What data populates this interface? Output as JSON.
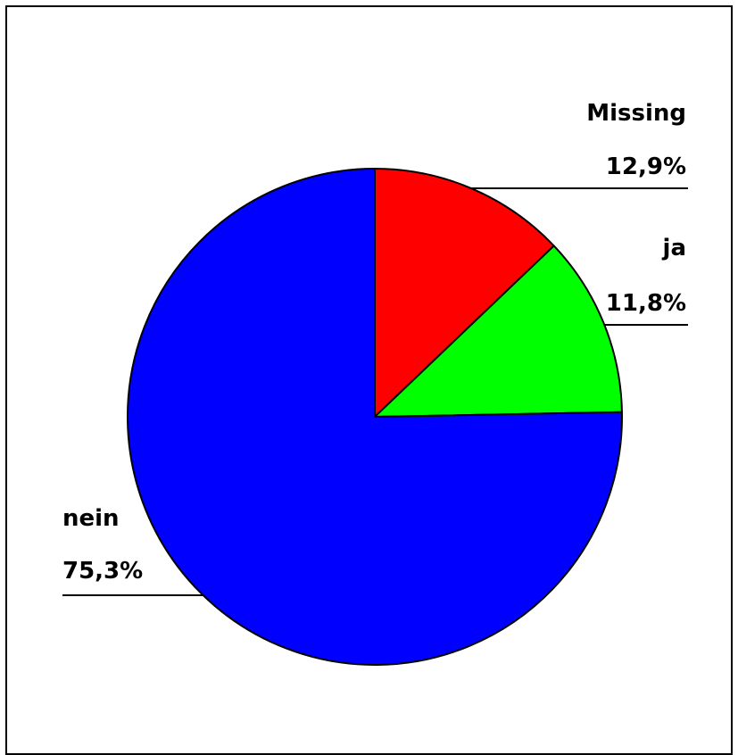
{
  "chart_data": {
    "type": "pie",
    "title": "",
    "slices": [
      {
        "label": "Missing",
        "value": 12.9,
        "value_label": "12,9%",
        "color": "#ff0000"
      },
      {
        "label": "ja",
        "value": 11.8,
        "value_label": "11,8%",
        "color": "#00ff00"
      },
      {
        "label": "nein",
        "value": 75.3,
        "value_label": "75,3%",
        "color": "#0000ff"
      }
    ],
    "start_angle_deg": 0,
    "direction": "clockwise",
    "legend": "none",
    "edge_color": "#000000"
  }
}
